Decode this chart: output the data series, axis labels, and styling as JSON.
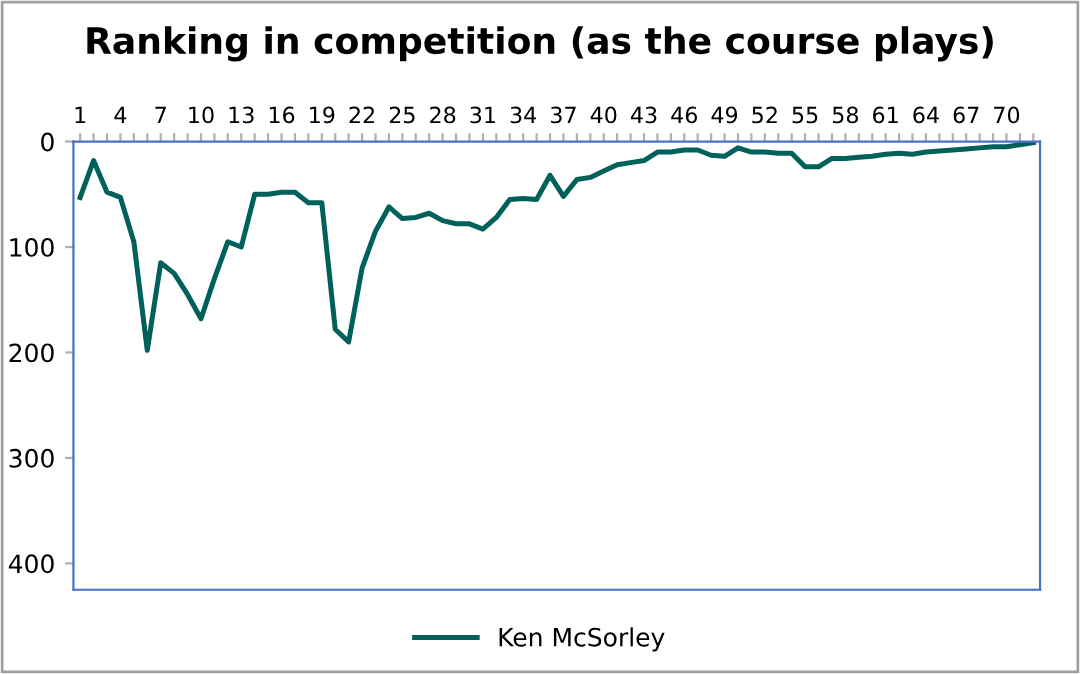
{
  "chart_data": {
    "type": "line",
    "title": "Ranking in competition (as the course plays)",
    "categories": [
      "1",
      null,
      null,
      "4",
      null,
      null,
      "7",
      null,
      null,
      "10",
      null,
      null,
      "13",
      null,
      null,
      "16",
      null,
      null,
      "19",
      null,
      null,
      "22",
      null,
      null,
      "25",
      null,
      null,
      "28",
      null,
      null,
      "31",
      null,
      null,
      "34",
      null,
      null,
      "37",
      null,
      null,
      "40",
      null,
      null,
      "43",
      null,
      null,
      "46",
      null,
      null,
      "49",
      null,
      null,
      "52",
      null,
      null,
      "55",
      null,
      null,
      "58",
      null,
      null,
      "61",
      null,
      null,
      "64",
      null,
      null,
      "67",
      null,
      null,
      "70",
      null,
      null
    ],
    "series": [
      {
        "name": "Ken McSorley",
        "color": "#00605a",
        "values": [
          53,
          18,
          48,
          53,
          95,
          198,
          115,
          125,
          145,
          168,
          130,
          95,
          100,
          50,
          50,
          48,
          48,
          58,
          58,
          178,
          190,
          120,
          85,
          62,
          73,
          72,
          68,
          75,
          78,
          78,
          83,
          72,
          55,
          54,
          55,
          32,
          52,
          36,
          34,
          28,
          22,
          20,
          18,
          10,
          10,
          8,
          8,
          13,
          14,
          6,
          10,
          10,
          11,
          11,
          24,
          24,
          16,
          16,
          15,
          14,
          12,
          11,
          12,
          10,
          9,
          8,
          7,
          6,
          5,
          5,
          3,
          1
        ]
      }
    ],
    "ylim": [
      425,
      0
    ],
    "yticks": [
      0,
      100,
      200,
      300,
      400
    ],
    "grid": false,
    "legend": "bottom",
    "marker": "none",
    "line_style": "solid"
  }
}
